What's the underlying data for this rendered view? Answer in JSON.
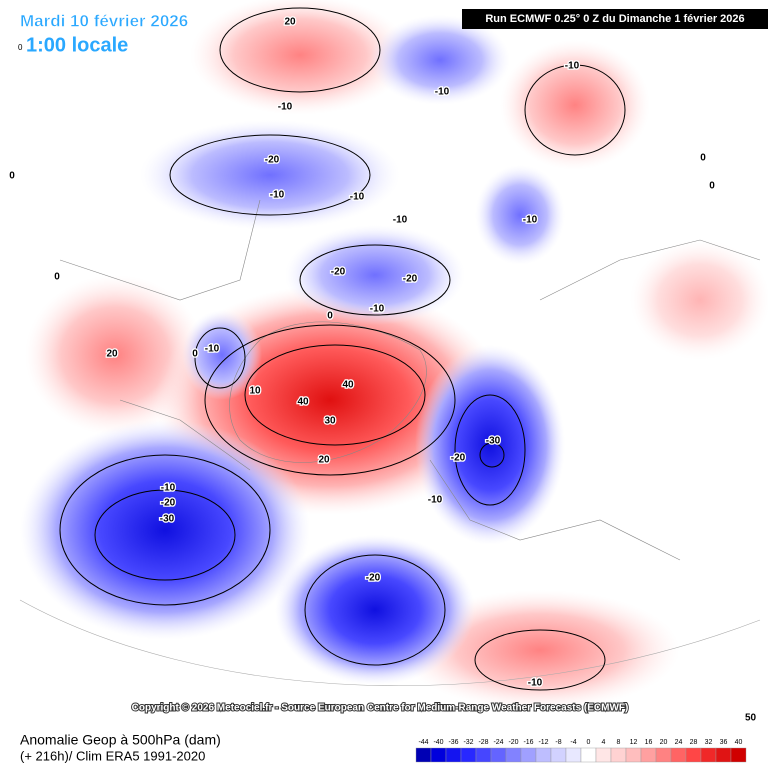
{
  "header": {
    "date": "Mardi 10 février 2026",
    "time": "1:00 locale",
    "time_prefix": "0",
    "run": "Run ECMWF 0.25° 0 Z du Dimanche 1 février 2026"
  },
  "map": {
    "contour_labels": [
      "20",
      "-10",
      "-10",
      "-10",
      "0",
      "-20",
      "-10",
      "-10",
      "-10",
      "-10",
      "0",
      "0",
      "0",
      "-20",
      "-20",
      "-10",
      "0",
      "20",
      "0",
      "-10",
      "10",
      "40",
      "40",
      "30",
      "-30",
      "-20",
      "20",
      "-10",
      "-10",
      "-20",
      "-30",
      "-20",
      "-10"
    ],
    "copyright": "Copyright © 2026 Meteociel.fr - Source European Centre for Medium-Range Weather Forecasts (ECMWF)",
    "corner": "50"
  },
  "footer": {
    "title": "Anomalie Geop à 500hPa (dam)",
    "subtitle": "(+ 216h)/ Clim ERA5 1991-2020"
  },
  "legend": {
    "ticks": [
      -44,
      -40,
      -36,
      -32,
      -28,
      -24,
      -20,
      -16,
      -12,
      -8,
      -4,
      0,
      4,
      8,
      12,
      16,
      20,
      24,
      28,
      32,
      36,
      40
    ],
    "colors": [
      "#0000b4",
      "#0000dc",
      "#1414f0",
      "#2828ff",
      "#4646ff",
      "#6464ff",
      "#8282ff",
      "#a0a0ff",
      "#bebeff",
      "#d2d2ff",
      "#e8e8ff",
      "#ffffff",
      "#ffe6e6",
      "#ffd2d2",
      "#ffbebe",
      "#ffa0a0",
      "#ff8282",
      "#ff6464",
      "#ff4646",
      "#f02828",
      "#e01414",
      "#d00000"
    ]
  }
}
